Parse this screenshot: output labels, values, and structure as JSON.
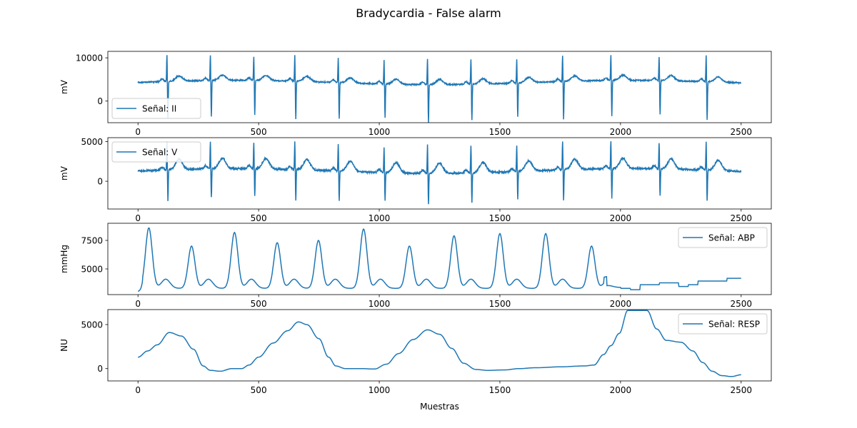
{
  "figure": {
    "title": "Bradycardia - False alarm"
  },
  "colors": {
    "line": "#1f77b4",
    "axes": "#000000",
    "legend_edge": "#cccccc"
  },
  "chart_data": [
    {
      "type": "line",
      "title": "",
      "xlabel": "",
      "ylabel": "mV",
      "xlim": [
        -125,
        2625
      ],
      "ylim": [
        -5000,
        11500
      ],
      "xticks": [
        0,
        500,
        1000,
        1500,
        2000,
        2500
      ],
      "xtick_labels": [
        "0",
        "500",
        "1000",
        "1500",
        "2000",
        "2500"
      ],
      "yticks": [
        0,
        10000
      ],
      "ytick_labels": [
        "0",
        "10000"
      ],
      "legend": "lower left",
      "grid": false,
      "series": [
        {
          "name": "Señal: II",
          "kind": "ecg",
          "baseline": 4300,
          "beats": [
            120,
            300,
            480,
            650,
            830,
            1020,
            1200,
            1380,
            1570,
            1760,
            1960,
            2160,
            2355
          ],
          "r_peak": 10500,
          "s_trough": -4500,
          "t_wave": 1200,
          "p_wave": 600,
          "wander": 500,
          "noise": 250
        }
      ]
    },
    {
      "type": "line",
      "title": "",
      "xlabel": "",
      "ylabel": "mV",
      "xlim": [
        -125,
        2625
      ],
      "ylim": [
        -3500,
        5500
      ],
      "xticks": [
        0,
        500,
        1000,
        1500,
        2000,
        2500
      ],
      "xtick_labels": [
        "0",
        "500",
        "1000",
        "1500",
        "2000",
        "2500"
      ],
      "yticks": [
        0,
        5000
      ],
      "ytick_labels": [
        "0",
        "5000"
      ],
      "legend": "upper left",
      "grid": false,
      "series": [
        {
          "name": "Señal: V",
          "kind": "ecg",
          "baseline": 1300,
          "beats": [
            120,
            300,
            480,
            650,
            830,
            1020,
            1200,
            1380,
            1570,
            1760,
            1960,
            2160,
            2355
          ],
          "r_peak": 5000,
          "s_trough": -2600,
          "t_wave": 1300,
          "p_wave": 400,
          "wander": 300,
          "noise": 200
        }
      ]
    },
    {
      "type": "line",
      "title": "",
      "xlabel": "",
      "ylabel": "mmHg",
      "xlim": [
        -125,
        2625
      ],
      "ylim": [
        2750,
        9000
      ],
      "xticks": [
        0,
        500,
        1000,
        1500,
        2000,
        2500
      ],
      "xtick_labels": [
        "0",
        "500",
        "1000",
        "1500",
        "2000",
        "2500"
      ],
      "yticks": [
        5000,
        7500
      ],
      "ytick_labels": [
        "5000",
        "7500"
      ],
      "legend": "upper right",
      "grid": false,
      "series": [
        {
          "name": "Señal: ABP",
          "kind": "abp",
          "pulses": [
            {
              "x": 45,
              "peak": 8600
            },
            {
              "x": 222,
              "peak": 7000
            },
            {
              "x": 400,
              "peak": 8200
            },
            {
              "x": 577,
              "peak": 7300
            },
            {
              "x": 748,
              "peak": 7500
            },
            {
              "x": 935,
              "peak": 8500
            },
            {
              "x": 1125,
              "peak": 7000
            },
            {
              "x": 1310,
              "peak": 7900
            },
            {
              "x": 1500,
              "peak": 8100
            },
            {
              "x": 1690,
              "peak": 8100
            },
            {
              "x": 1880,
              "peak": 7000
            }
          ],
          "diastolic": 3300,
          "notch": 4100,
          "tail": [
            [
              1930,
              3400
            ],
            [
              2000,
              3300
            ],
            [
              2050,
              3150
            ],
            [
              2100,
              3700
            ],
            [
              2200,
              3900
            ],
            [
              2300,
              3500
            ],
            [
              2350,
              3700
            ],
            [
              2400,
              4100
            ],
            [
              2550,
              4400
            ],
            [
              2700,
              3900
            ],
            [
              2800,
              4500
            ],
            [
              2900,
              3750
            ],
            [
              2950,
              3900
            ],
            [
              3100,
              4600
            ],
            [
              3200,
              4400
            ]
          ]
        }
      ]
    },
    {
      "type": "line",
      "title": "",
      "xlabel": "Muestras",
      "ylabel": "NU",
      "xlim": [
        -125,
        2625
      ],
      "ylim": [
        -1400,
        6700
      ],
      "xticks": [
        0,
        500,
        1000,
        1500,
        2000,
        2500
      ],
      "xtick_labels": [
        "0",
        "500",
        "1000",
        "1500",
        "2000",
        "2500"
      ],
      "yticks": [
        0,
        5000
      ],
      "ytick_labels": [
        "0",
        "5000"
      ],
      "legend": "upper right",
      "grid": false,
      "series": [
        {
          "name": "Señal: RESP",
          "kind": "resp",
          "points": [
            [
              0,
              1300
            ],
            [
              40,
              2000
            ],
            [
              80,
              2700
            ],
            [
              130,
              4100
            ],
            [
              180,
              3700
            ],
            [
              230,
              2200
            ],
            [
              270,
              300
            ],
            [
              300,
              -200
            ],
            [
              340,
              -300
            ],
            [
              390,
              0
            ],
            [
              430,
              0
            ],
            [
              460,
              400
            ],
            [
              500,
              1300
            ],
            [
              560,
              2900
            ],
            [
              620,
              4300
            ],
            [
              665,
              5300
            ],
            [
              700,
              5000
            ],
            [
              750,
              3400
            ],
            [
              790,
              1300
            ],
            [
              820,
              300
            ],
            [
              860,
              0
            ],
            [
              920,
              0
            ],
            [
              980,
              -50
            ],
            [
              1030,
              500
            ],
            [
              1080,
              1700
            ],
            [
              1140,
              3300
            ],
            [
              1200,
              4400
            ],
            [
              1250,
              3900
            ],
            [
              1300,
              2300
            ],
            [
              1350,
              600
            ],
            [
              1400,
              -100
            ],
            [
              1450,
              -200
            ],
            [
              1520,
              -150
            ],
            [
              1580,
              0
            ],
            [
              1650,
              100
            ],
            [
              1750,
              200
            ],
            [
              1850,
              300
            ],
            [
              1890,
              400
            ],
            [
              1930,
              1600
            ],
            [
              1960,
              2600
            ],
            [
              1995,
              4000
            ],
            [
              2030,
              6600
            ],
            [
              2110,
              6600
            ],
            [
              2150,
              4500
            ],
            [
              2190,
              3200
            ],
            [
              2250,
              3000
            ],
            [
              2300,
              2000
            ],
            [
              2340,
              700
            ],
            [
              2380,
              -300
            ],
            [
              2420,
              -800
            ],
            [
              2460,
              -900
            ],
            [
              2500,
              -700
            ]
          ]
        }
      ]
    }
  ]
}
